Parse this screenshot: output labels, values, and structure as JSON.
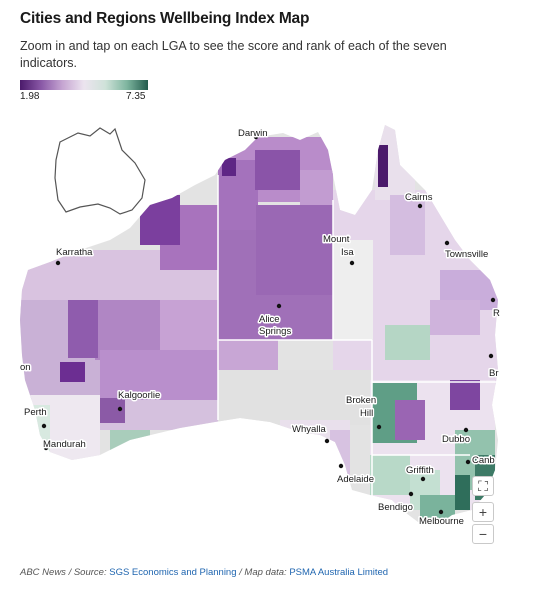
{
  "title": "Cities and Regions Wellbeing Index Map",
  "subtitle": "Zoom in and tap on each LGA to see the score and rank of each of the seven indicators.",
  "legend": {
    "min": "1.98",
    "max": "7.35"
  },
  "colors": {
    "low": "#4b1a6b",
    "mid": "#ece4ef",
    "high": "#235c4d",
    "no_data": "#e3e3e3"
  },
  "cities": [
    {
      "name": "Darwin"
    },
    {
      "name": "Cairns"
    },
    {
      "name": "Karratha"
    },
    {
      "name": "Mount Isa"
    },
    {
      "name": "Townsville"
    },
    {
      "name": "Alice Springs"
    },
    {
      "name": "Kalgoorlie"
    },
    {
      "name": "Broken Hill"
    },
    {
      "name": "Perth"
    },
    {
      "name": "Whyalla"
    },
    {
      "name": "Dubbo"
    },
    {
      "name": "Mandurah"
    },
    {
      "name": "Canb"
    },
    {
      "name": "Adelaide"
    },
    {
      "name": "Griffith"
    },
    {
      "name": "Bendigo"
    },
    {
      "name": "Melbourne"
    },
    {
      "name": "R"
    },
    {
      "name": "Br"
    },
    {
      "name": "on"
    }
  ],
  "controls": {
    "fullscreen": "⛶",
    "zoom_in": "+",
    "zoom_out": "−"
  },
  "footer": {
    "source_prefix": "ABC News / Source: ",
    "source_link": "SGS Economics and Planning",
    "map_prefix": " / Map data: ",
    "map_link": "PSMA Australia Limited"
  }
}
